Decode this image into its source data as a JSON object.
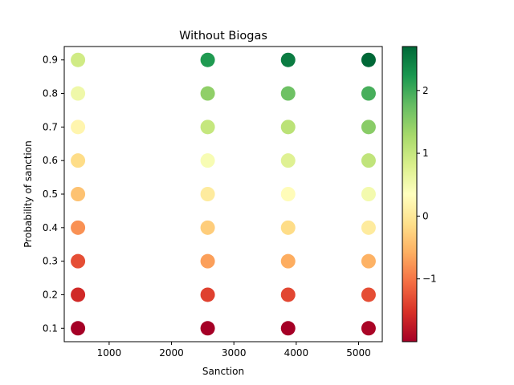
{
  "chart_data": {
    "type": "scatter",
    "title": "Without Biogas",
    "xlabel": "Sanction",
    "ylabel": "Probability of sanction",
    "xlim": [
      280,
      5380
    ],
    "ylim": [
      0.06,
      0.94
    ],
    "xticks": [
      1000,
      2000,
      3000,
      4000,
      5000
    ],
    "yticks": [
      0.1,
      0.2,
      0.3,
      0.4,
      0.5,
      0.6,
      0.7,
      0.8,
      0.9
    ],
    "grid": false,
    "colormap": "RdYlGn",
    "colorbar": {
      "min": -2.0,
      "max": 2.7,
      "ticks": [
        -1,
        0,
        1,
        2
      ],
      "tick_labels": [
        "−1",
        "0",
        "1",
        "2"
      ]
    },
    "points": [
      {
        "x": 500,
        "y": 0.1,
        "value": -2.0
      },
      {
        "x": 500,
        "y": 0.2,
        "value": -1.6
      },
      {
        "x": 500,
        "y": 0.3,
        "value": -1.3
      },
      {
        "x": 500,
        "y": 0.4,
        "value": -0.8
      },
      {
        "x": 500,
        "y": 0.5,
        "value": -0.4
      },
      {
        "x": 500,
        "y": 0.6,
        "value": -0.15
      },
      {
        "x": 500,
        "y": 0.7,
        "value": 0.2
      },
      {
        "x": 500,
        "y": 0.8,
        "value": 0.55
      },
      {
        "x": 500,
        "y": 0.9,
        "value": 0.9
      },
      {
        "x": 2580,
        "y": 0.1,
        "value": -2.0
      },
      {
        "x": 2580,
        "y": 0.2,
        "value": -1.4
      },
      {
        "x": 2580,
        "y": 0.3,
        "value": -0.7
      },
      {
        "x": 2580,
        "y": 0.4,
        "value": -0.3
      },
      {
        "x": 2580,
        "y": 0.5,
        "value": 0.05
      },
      {
        "x": 2580,
        "y": 0.6,
        "value": 0.45
      },
      {
        "x": 2580,
        "y": 0.7,
        "value": 1.0
      },
      {
        "x": 2580,
        "y": 0.8,
        "value": 1.45
      },
      {
        "x": 2580,
        "y": 0.9,
        "value": 2.2
      },
      {
        "x": 3870,
        "y": 0.1,
        "value": -2.0
      },
      {
        "x": 3870,
        "y": 0.2,
        "value": -1.35
      },
      {
        "x": 3870,
        "y": 0.3,
        "value": -0.6
      },
      {
        "x": 3870,
        "y": 0.4,
        "value": -0.15
      },
      {
        "x": 3870,
        "y": 0.5,
        "value": 0.3
      },
      {
        "x": 3870,
        "y": 0.6,
        "value": 0.75
      },
      {
        "x": 3870,
        "y": 0.7,
        "value": 1.1
      },
      {
        "x": 3870,
        "y": 0.8,
        "value": 1.7
      },
      {
        "x": 3870,
        "y": 0.9,
        "value": 2.5
      },
      {
        "x": 5160,
        "y": 0.1,
        "value": -1.95
      },
      {
        "x": 5160,
        "y": 0.2,
        "value": -1.3
      },
      {
        "x": 5160,
        "y": 0.3,
        "value": -0.55
      },
      {
        "x": 5160,
        "y": 0.4,
        "value": 0.05
      },
      {
        "x": 5160,
        "y": 0.5,
        "value": 0.5
      },
      {
        "x": 5160,
        "y": 0.6,
        "value": 1.05
      },
      {
        "x": 5160,
        "y": 0.7,
        "value": 1.5
      },
      {
        "x": 5160,
        "y": 0.8,
        "value": 1.95
      },
      {
        "x": 5160,
        "y": 0.9,
        "value": 2.7
      }
    ]
  }
}
